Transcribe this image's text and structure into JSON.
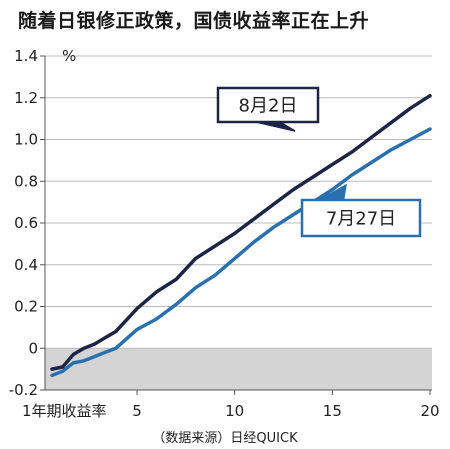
{
  "chart_data": {
    "type": "line",
    "title": "随着日银修正政策，国债收益率正在上升",
    "ylabel": "%",
    "xlabel": "1年期收益率",
    "source": "（数据来源）日经QUICK",
    "x": [
      1,
      1.5,
      2,
      2.5,
      3,
      3.5,
      4,
      5,
      6,
      7,
      8,
      9,
      10,
      11,
      12,
      13,
      14,
      15,
      16,
      17,
      18,
      19,
      20
    ],
    "xlim": [
      1,
      20
    ],
    "ylim": [
      -0.2,
      1.4
    ],
    "yticks": [
      -0.2,
      0,
      0.2,
      0.4,
      0.6,
      0.8,
      1.0,
      1.2,
      1.4
    ],
    "ytick_labels": [
      "-0.2",
      "0",
      "0.2",
      "0.4",
      "0.6",
      "0.8",
      "1.0",
      "1.2",
      "1.4"
    ],
    "xticks": [
      5,
      10,
      15,
      20
    ],
    "xtick_labels": [
      "5",
      "10",
      "15",
      "20"
    ],
    "shade_below_zero": true,
    "series": [
      {
        "name": "8月2日",
        "color": "#1c2545",
        "values": [
          -0.1,
          -0.09,
          -0.03,
          0.0,
          0.02,
          0.05,
          0.08,
          0.19,
          0.27,
          0.33,
          0.43,
          0.49,
          0.55,
          0.62,
          0.69,
          0.76,
          0.82,
          0.88,
          0.94,
          1.01,
          1.08,
          1.15,
          1.21
        ]
      },
      {
        "name": "7月27日",
        "color": "#2a6fb0",
        "values": [
          -0.13,
          -0.11,
          -0.07,
          -0.06,
          -0.04,
          -0.02,
          0.0,
          0.09,
          0.14,
          0.21,
          0.29,
          0.35,
          0.43,
          0.51,
          0.58,
          0.64,
          0.7,
          0.76,
          0.83,
          0.89,
          0.95,
          1.0,
          1.05
        ]
      }
    ]
  }
}
